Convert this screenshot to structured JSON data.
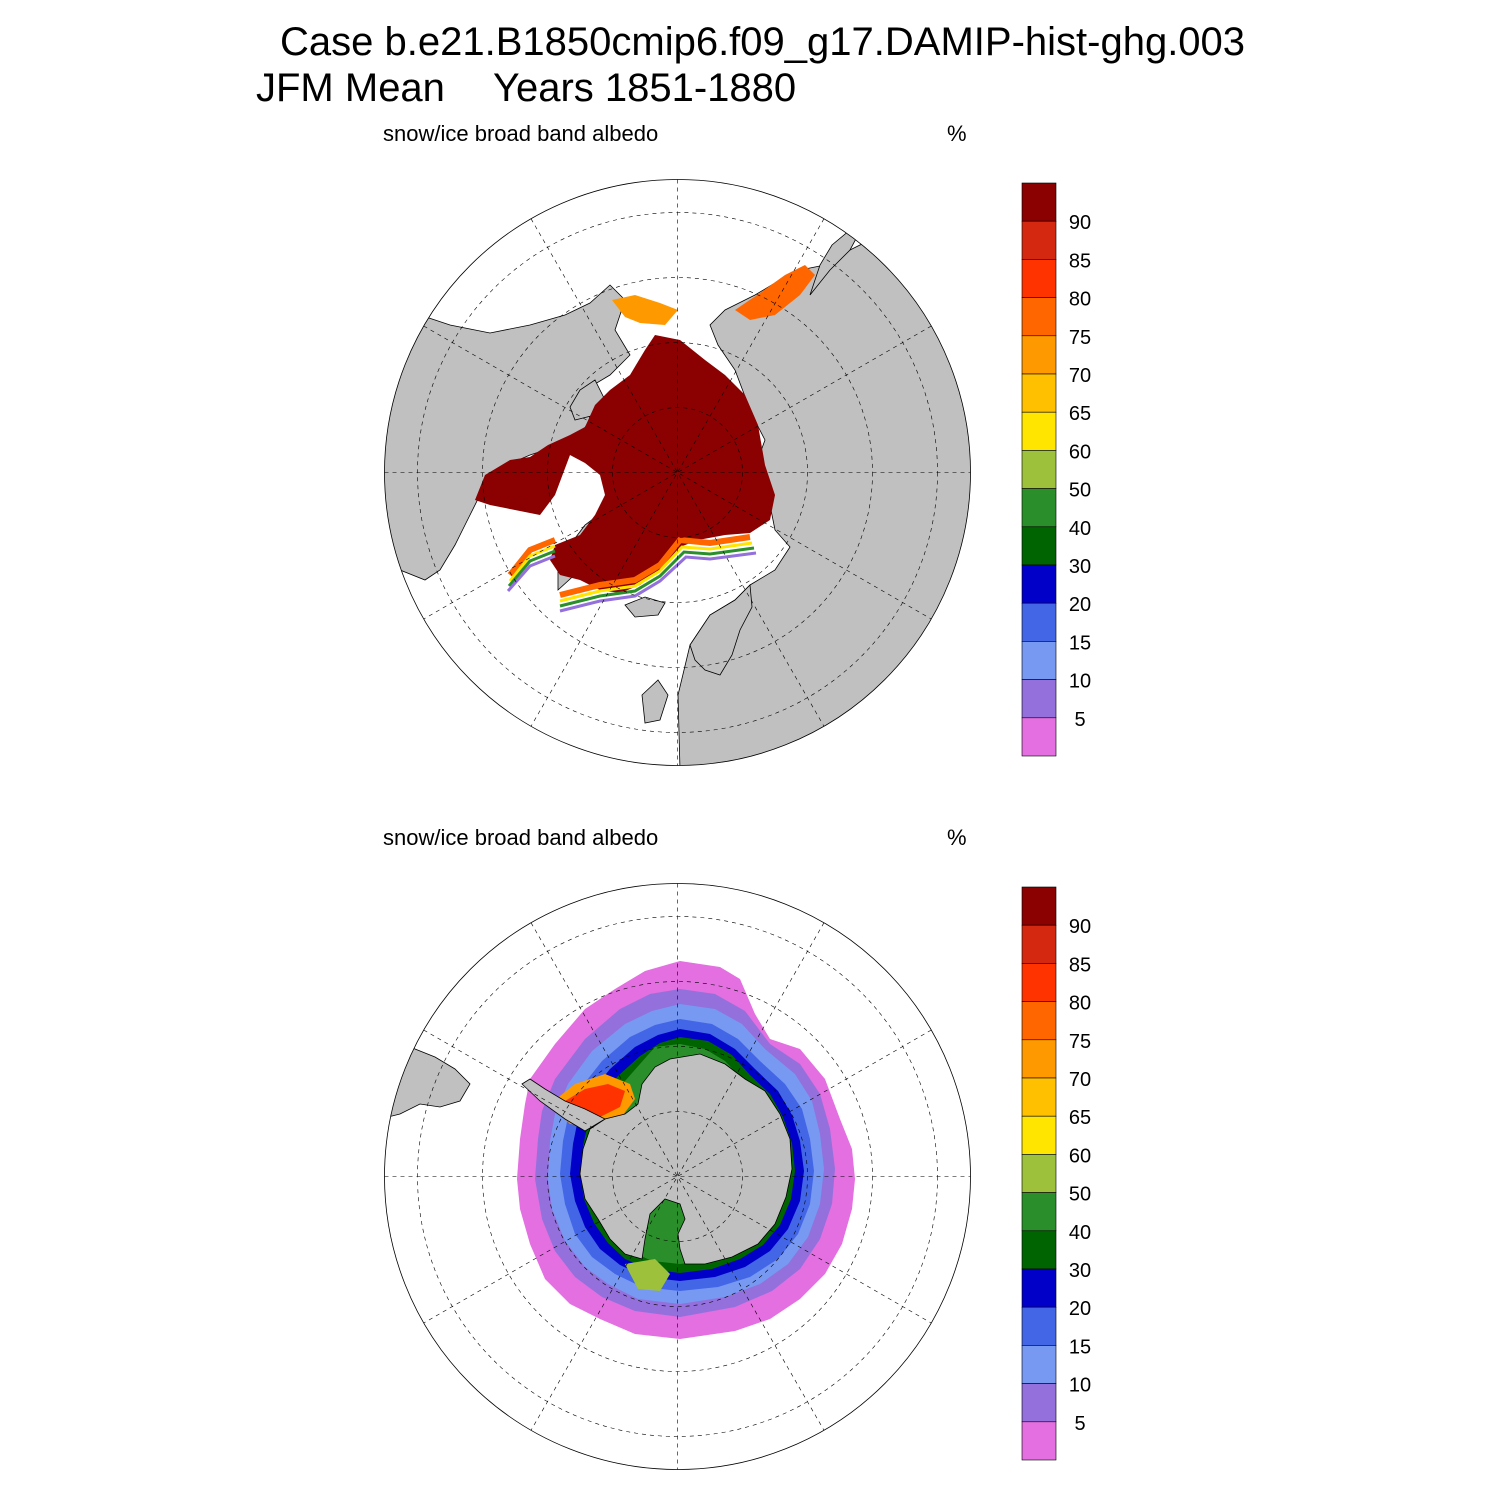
{
  "header": {
    "case_line": "Case b.e21.B1850cmip6.f09_g17.DAMIP-hist-ghg.003",
    "season": "JFM Mean",
    "years": "Years 1851-1880"
  },
  "panels": [
    {
      "id": "north",
      "hemisphere": "north",
      "variable": "snow/ice broad band albedo",
      "units": "%"
    },
    {
      "id": "south",
      "hemisphere": "south",
      "variable": "snow/ice broad band albedo",
      "units": "%"
    }
  ],
  "colorbar": {
    "tick_labels": [
      "90",
      "85",
      "80",
      "75",
      "70",
      "65",
      "60",
      "50",
      "40",
      "30",
      "20",
      "15",
      "10",
      "5"
    ],
    "colors_top_to_bottom": [
      "#8b0000",
      "#d42910",
      "#ff3300",
      "#ff6600",
      "#ff9900",
      "#ffc000",
      "#ffe500",
      "#9dc13a",
      "#2a8f2a",
      "#006400",
      "#0000c8",
      "#4266e6",
      "#7799f2",
      "#9370db",
      "#e36fe0"
    ]
  },
  "colors": {
    "land": "#c0c0c0",
    "ocean": "#ffffff",
    "ice_max": "#8b0000"
  }
}
